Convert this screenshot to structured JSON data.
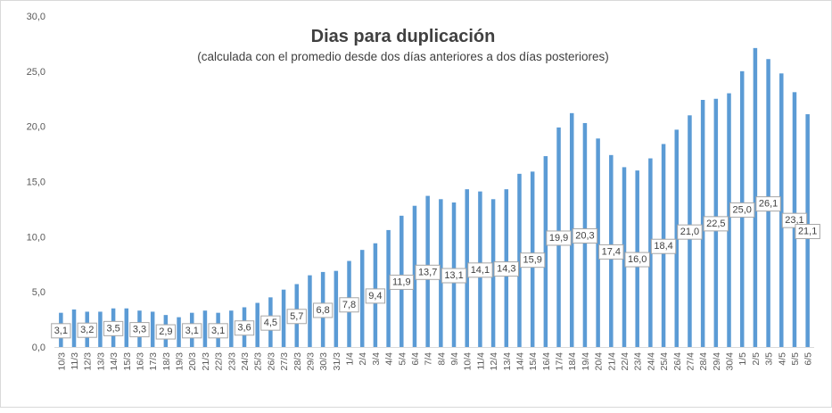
{
  "chart_data": {
    "type": "bar",
    "title": "Dias para duplicación",
    "subtitle": "(calculada con el promedio  desde dos días anteriores a dos días posteriores)",
    "xlabel": "",
    "ylabel": "",
    "ylim": [
      0,
      30
    ],
    "ytick_values": [
      0,
      5,
      10,
      15,
      20,
      25,
      30
    ],
    "ytick_labels": [
      "0,0",
      "5,0",
      "10,0",
      "15,0",
      "20,0",
      "25,0",
      "30,0"
    ],
    "grid": false,
    "legend": "none",
    "bar_color": "#5B9BD5",
    "categories": [
      "10/3",
      "11/3",
      "12/3",
      "13/3",
      "14/3",
      "15/3",
      "16/3",
      "17/3",
      "18/3",
      "19/3",
      "20/3",
      "21/3",
      "22/3",
      "23/3",
      "24/3",
      "25/3",
      "26/3",
      "27/3",
      "28/3",
      "29/3",
      "30/3",
      "31/3",
      "1/4",
      "2/4",
      "3/4",
      "4/4",
      "5/4",
      "6/4",
      "7/4",
      "8/4",
      "9/4",
      "10/4",
      "11/4",
      "12/4",
      "13/4",
      "14/4",
      "15/4",
      "16/4",
      "17/4",
      "18/4",
      "19/4",
      "20/4",
      "21/4",
      "22/4",
      "23/4",
      "24/4",
      "25/4",
      "26/4",
      "27/4",
      "28/4",
      "29/4",
      "30/4",
      "1/5",
      "2/5",
      "3/5",
      "4/5",
      "5/5",
      "6/5"
    ],
    "values": [
      3.1,
      3.4,
      3.2,
      3.2,
      3.5,
      3.5,
      3.3,
      3.2,
      2.9,
      2.7,
      3.1,
      3.3,
      3.1,
      3.3,
      3.6,
      4.0,
      4.5,
      5.2,
      5.7,
      6.5,
      6.8,
      6.9,
      7.8,
      8.8,
      9.4,
      10.6,
      11.9,
      12.8,
      13.7,
      13.4,
      13.1,
      14.3,
      14.1,
      13.4,
      14.3,
      15.7,
      15.9,
      17.3,
      19.9,
      21.2,
      20.3,
      18.9,
      17.4,
      16.3,
      16.0,
      17.1,
      18.4,
      19.7,
      21.0,
      22.4,
      22.5,
      23.0,
      25.0,
      27.1,
      26.1,
      24.8,
      23.1,
      21.1
    ],
    "data_labels": [
      {
        "category": "10/3",
        "text": "3,1"
      },
      {
        "category": "12/3",
        "text": "3,2"
      },
      {
        "category": "14/3",
        "text": "3,5"
      },
      {
        "category": "16/3",
        "text": "3,3"
      },
      {
        "category": "18/3",
        "text": "2,9"
      },
      {
        "category": "20/3",
        "text": "3,1"
      },
      {
        "category": "22/3",
        "text": "3,1"
      },
      {
        "category": "24/3",
        "text": "3,6"
      },
      {
        "category": "26/3",
        "text": "4,5"
      },
      {
        "category": "28/3",
        "text": "5,7"
      },
      {
        "category": "30/3",
        "text": "6,8"
      },
      {
        "category": "1/4",
        "text": "7,8"
      },
      {
        "category": "3/4",
        "text": "9,4"
      },
      {
        "category": "5/4",
        "text": "11,9"
      },
      {
        "category": "7/4",
        "text": "13,7"
      },
      {
        "category": "9/4",
        "text": "13,1"
      },
      {
        "category": "11/4",
        "text": "14,1"
      },
      {
        "category": "13/4",
        "text": "14,3"
      },
      {
        "category": "15/4",
        "text": "15,9"
      },
      {
        "category": "17/4",
        "text": "19,9"
      },
      {
        "category": "19/4",
        "text": "20,3"
      },
      {
        "category": "21/4",
        "text": "17,4"
      },
      {
        "category": "23/4",
        "text": "16,0"
      },
      {
        "category": "25/4",
        "text": "18,4"
      },
      {
        "category": "27/4",
        "text": "21,0"
      },
      {
        "category": "29/4",
        "text": "22,5"
      },
      {
        "category": "1/5",
        "text": "25,0"
      },
      {
        "category": "3/5",
        "text": "26,1"
      },
      {
        "category": "5/5",
        "text": "23,1"
      },
      {
        "category": "6/5",
        "text": "21,1"
      }
    ]
  }
}
